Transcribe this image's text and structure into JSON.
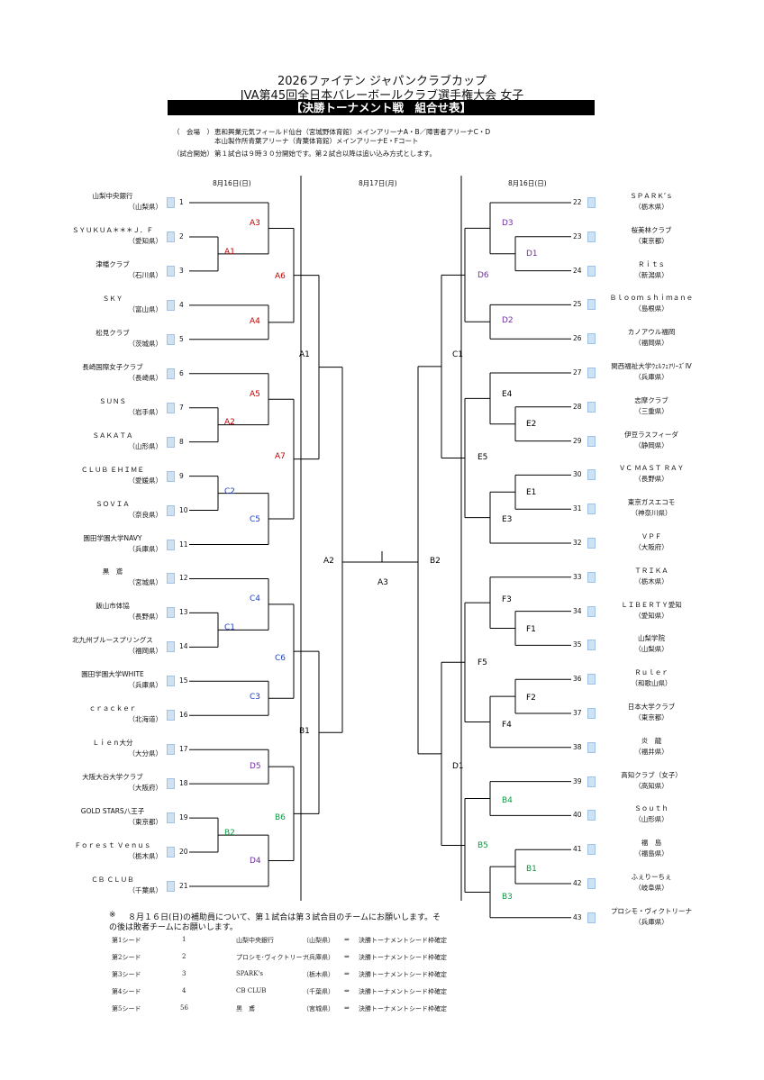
{
  "header": {
    "line1": "2026ファイテン ジャパンクラブカップ",
    "line2": "JVA第45回全日本バレーボールクラブ選手権大会 女子",
    "banner": "【決勝トーナメント戦　組合せ表】"
  },
  "venue": {
    "label": "（　会場　）",
    "line1": "恵和興業元気フィールド仙台（宮城野体育館）メインアリーナA・B／障害者アリーナC・D",
    "line2": "本山製作所青葉アリーナ（青葉体育館）メインアリーナE・Fコート"
  },
  "start": {
    "label": "（試合開始）",
    "text": "第１試合は９時３０分開始です。第２試合以降は追い込み方式とします。"
  },
  "dates": {
    "left": "8月16日(日)",
    "center": "8月17日(月)",
    "right": "8月16日(日)"
  },
  "colors": {
    "red": "#c00000",
    "blue": "#1f3fbf",
    "purple": "#7030a0",
    "green": "#0a9a40",
    "black": "#000000"
  },
  "left_teams": [
    {
      "n": "1",
      "name": "山梨中央銀行",
      "pref": "（山梨県）",
      "seed": true
    },
    {
      "n": "2",
      "name": "ＳＹＵＫＵＡ＊＊＊Ｊ．Ｆ",
      "pref": "（愛知県）",
      "seed": true
    },
    {
      "n": "3",
      "name": "津幡クラブ",
      "pref": "（石川県）",
      "seed": true
    },
    {
      "n": "4",
      "name": "ＳＫＹ",
      "pref": "（富山県）",
      "seed": true
    },
    {
      "n": "5",
      "name": "松見クラブ",
      "pref": "（茨城県）",
      "seed": true
    },
    {
      "n": "6",
      "name": "長崎国際女子クラブ",
      "pref": "（長崎県）",
      "seed": true
    },
    {
      "n": "7",
      "name": "ＳＵＮＳ",
      "pref": "（岩手県）",
      "seed": true
    },
    {
      "n": "8",
      "name": "ＳＡＫＡＴＡ",
      "pref": "（山形県）",
      "seed": true
    },
    {
      "n": "9",
      "name": "ＣＬＵＢ ＥＨＩＭＥ",
      "pref": "（愛媛県）",
      "seed": true
    },
    {
      "n": "10",
      "name": "ＳＯＶＩＡ",
      "pref": "（奈良県）",
      "seed": true
    },
    {
      "n": "11",
      "name": "園田学園大学NAVY",
      "pref": "（兵庫県）",
      "seed": true
    },
    {
      "n": "12",
      "name": "黒　鳶",
      "pref": "（宮城県）",
      "seed": true
    },
    {
      "n": "13",
      "name": "飯山市体協",
      "pref": "（長野県）",
      "seed": true
    },
    {
      "n": "14",
      "name": "北九州ブルースプリングス",
      "pref": "（福岡県）",
      "seed": true
    },
    {
      "n": "15",
      "name": "園田学園大学WHITE",
      "pref": "（兵庫県）",
      "seed": true
    },
    {
      "n": "16",
      "name": "ｃｒａｃｋｅｒ",
      "pref": "（北海道）",
      "seed": true
    },
    {
      "n": "17",
      "name": "Ｌｉｅｎ大分",
      "pref": "（大分県）",
      "seed": true
    },
    {
      "n": "18",
      "name": "大阪大谷大学クラブ",
      "pref": "（大阪府）",
      "seed": true
    },
    {
      "n": "19",
      "name": "GOLD STARS八王子",
      "pref": "（東京都）",
      "seed": true
    },
    {
      "n": "20",
      "name": "Ｆｏｒｅｓｔ Ｖｅｎｕｓ",
      "pref": "（栃木県）",
      "seed": true
    },
    {
      "n": "21",
      "name": "ＣＢ ＣＬＵＢ",
      "pref": "（千葉県）",
      "seed": true
    }
  ],
  "right_teams": [
    {
      "n": "22",
      "name": "ＳＰＡＲＫ’ｓ",
      "pref": "（栃木県）",
      "seed": true
    },
    {
      "n": "23",
      "name": "桜美林クラブ",
      "pref": "（東京都）",
      "seed": true
    },
    {
      "n": "24",
      "name": "Ｒｉｔｓ",
      "pref": "（新潟県）",
      "seed": true
    },
    {
      "n": "25",
      "name": "Ｂｌｏｏｍ ｓｈｉｍａｎｅ",
      "pref": "（島根県）",
      "seed": true
    },
    {
      "n": "26",
      "name": "カノアウル福岡",
      "pref": "（福岡県）",
      "seed": true
    },
    {
      "n": "27",
      "name": "関西福祉大学ｳｪﾙﾌｪｱﾘｰｽﾞⅣ",
      "pref": "（兵庫県）",
      "seed": true
    },
    {
      "n": "28",
      "name": "志摩クラブ",
      "pref": "（三重県）",
      "seed": true
    },
    {
      "n": "29",
      "name": "伊豆ラスフィーダ",
      "pref": "（静岡県）",
      "seed": true
    },
    {
      "n": "30",
      "name": "ＶＣ ＭＡＳＴ ＲＡＹ",
      "pref": "（長野県）",
      "seed": true
    },
    {
      "n": "31",
      "name": "東京ガスエコモ",
      "pref": "（神奈川県）",
      "seed": true
    },
    {
      "n": "32",
      "name": "ＶＰＦ",
      "pref": "（大阪府）",
      "seed": true
    },
    {
      "n": "33",
      "name": "ＴＲＩＫＡ",
      "pref": "（栃木県）",
      "seed": true
    },
    {
      "n": "34",
      "name": "ＬＩＢＥＲＴＹ愛知",
      "pref": "（愛知県）",
      "seed": true
    },
    {
      "n": "35",
      "name": "山梨学院",
      "pref": "（山梨県）",
      "seed": true
    },
    {
      "n": "36",
      "name": "Ｒｕｌｅｒ",
      "pref": "（和歌山県）",
      "seed": true
    },
    {
      "n": "37",
      "name": "日本大学クラブ",
      "pref": "（東京都）",
      "seed": true
    },
    {
      "n": "38",
      "name": "炎　龍",
      "pref": "（福井県）",
      "seed": true
    },
    {
      "n": "39",
      "name": "高知クラブ（女子）",
      "pref": "（高知県）",
      "seed": true
    },
    {
      "n": "40",
      "name": "Ｓｏｕｔｈ",
      "pref": "（山形県）",
      "seed": true
    },
    {
      "n": "41",
      "name": "福　島",
      "pref": "（福島県）",
      "seed": true
    },
    {
      "n": "42",
      "name": "ふぇりーちぇ",
      "pref": "（岐阜県）",
      "seed": true
    },
    {
      "n": "43",
      "name": "プロシモ・ヴィクトリーナ",
      "pref": "（兵庫県）",
      "seed": true
    }
  ],
  "match_labels": {
    "A1": "A1",
    "A2": "A2",
    "A3": "A3",
    "A4": "A4",
    "A5": "A5",
    "A6": "A6",
    "A7": "A7",
    "C1": "C1",
    "C2": "C2",
    "C3": "C3",
    "C4": "C4",
    "C5": "C5",
    "C6": "C6",
    "B1": "B1",
    "B2": "B2",
    "B3": "B3",
    "B4": "B4",
    "B5": "B5",
    "B6": "B6",
    "D1": "D1",
    "D2": "D2",
    "D3": "D3",
    "D4": "D4",
    "D5": "D5",
    "D6": "D6",
    "E1": "E1",
    "E2": "E2",
    "E3": "E3",
    "E4": "E4",
    "E5": "E5",
    "F1": "F1",
    "F2": "F2",
    "F3": "F3",
    "F4": "F4",
    "F5": "F5"
  },
  "notes": {
    "mark": "※",
    "line1": "８月１６日(日)の補助員について、第１試合は第３試合目のチームにお願いします。そ",
    "line2": "の後は敗者チームにお願いします。"
  },
  "seeds": [
    {
      "rank": "第1シード",
      "num": "1",
      "team": "山梨中央銀行",
      "pref": "（山梨県）",
      "arrow": "⇒",
      "status": "決勝トーナメントシード枠確定"
    },
    {
      "rank": "第2シード",
      "num": "2",
      "team": "プロシモ･ヴィクトリーナ",
      "pref": "（兵庫県）",
      "arrow": "⇒",
      "status": "決勝トーナメントシード枠確定"
    },
    {
      "rank": "第3シード",
      "num": "3",
      "team": "SPARK's",
      "pref": "（栃木県）",
      "arrow": "⇒",
      "status": "決勝トーナメントシード枠確定"
    },
    {
      "rank": "第4シード",
      "num": "4",
      "team": "CB CLUB",
      "pref": "（千葉県）",
      "arrow": "⇒",
      "status": "決勝トーナメントシード枠確定"
    },
    {
      "rank": "第5シード",
      "num": "56",
      "team": "黒　鳶",
      "pref": "（宮城県）",
      "arrow": "⇒",
      "status": "決勝トーナメントシード枠確定"
    }
  ]
}
